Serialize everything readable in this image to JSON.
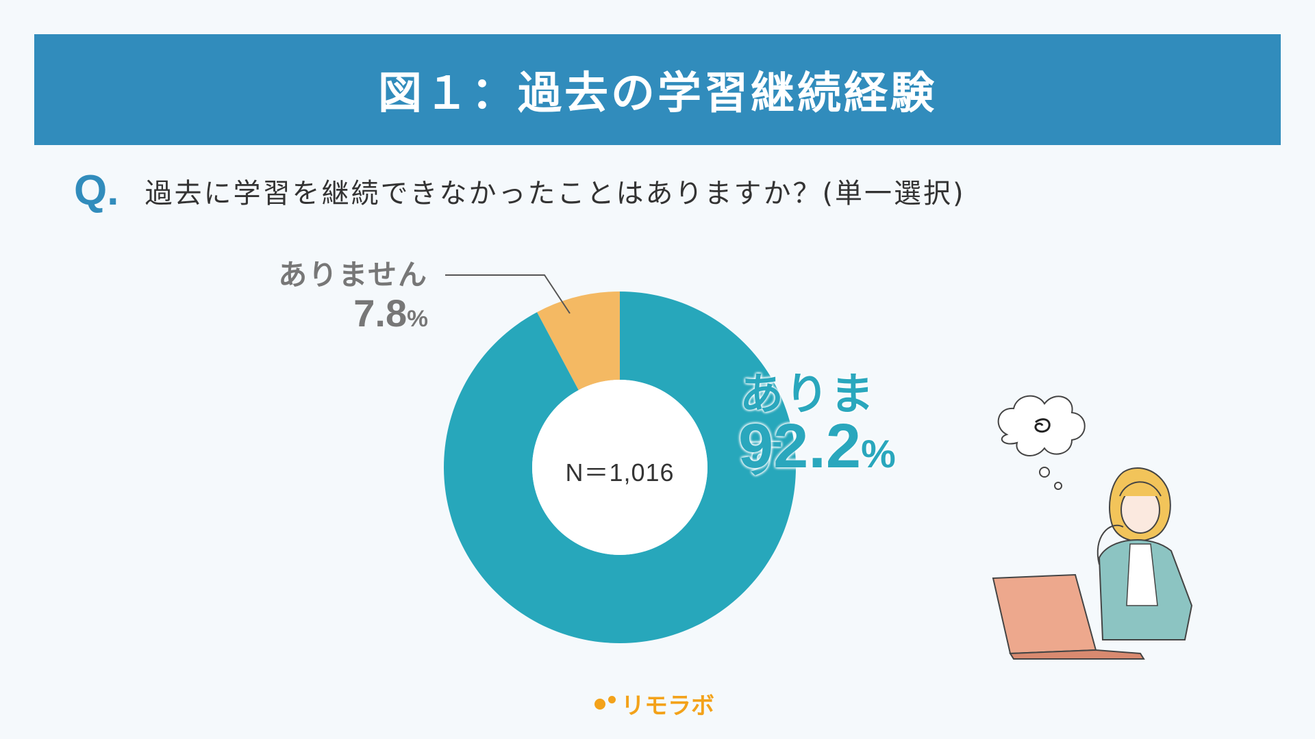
{
  "header": {
    "title": "図１：過去の学習継続経験"
  },
  "question": {
    "mark": "Q.",
    "text": "過去に学習を継続できなかったことはありますか？(単一選択)"
  },
  "chart_data": {
    "type": "pie",
    "variant": "donut",
    "sample_size_label": "N＝1,016",
    "slices": [
      {
        "label": "ありません",
        "value": 7.8,
        "value_text": "7.8",
        "color": "#f4b963"
      },
      {
        "label": "あります",
        "value": 92.2,
        "value_text": "92.2",
        "color": "#27a7bb"
      }
    ],
    "unit": "%"
  },
  "brand": {
    "name": "リモラボ",
    "color": "#f3a21a"
  },
  "colors": {
    "header_bg": "#318cbc",
    "background": "#f5f9fc"
  }
}
